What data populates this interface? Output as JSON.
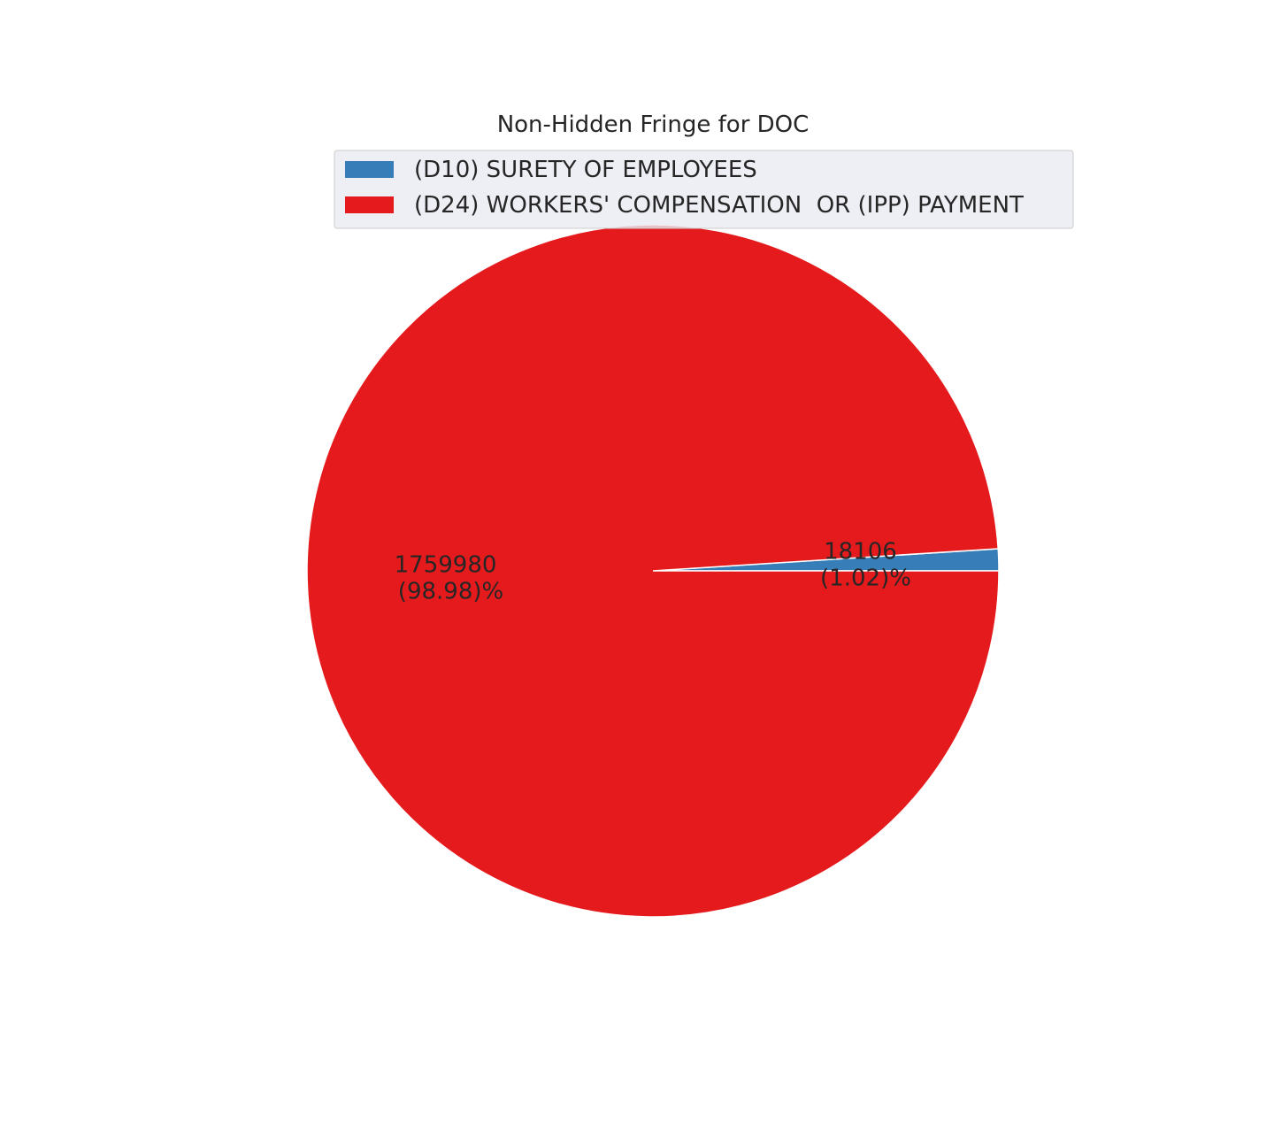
{
  "chart_data": {
    "type": "pie",
    "title": "Non-Hidden Fringe for DOC",
    "slices": [
      {
        "label": "(D10) SURETY OF EMPLOYEES",
        "value": 18106,
        "percent": 1.02,
        "color": "#377eb8",
        "value_text": "18106",
        "percent_text": "(1.02)%"
      },
      {
        "label": "(D24) WORKERS' COMPENSATION  OR (IPP) PAYMENT",
        "value": 1759980,
        "percent": 98.98,
        "color": "#e41a1c",
        "value_text": "1759980",
        "percent_text": "(98.98)%"
      }
    ],
    "start_angle_deg": 0,
    "direction": "counterclockwise",
    "legend_position": "top"
  }
}
